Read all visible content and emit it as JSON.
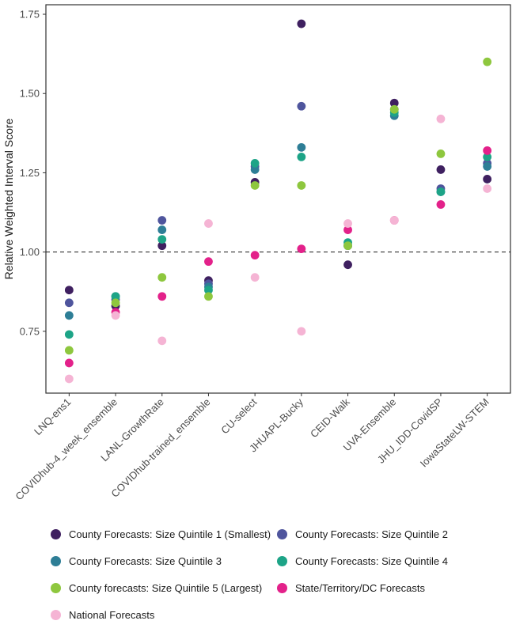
{
  "page": {
    "background": "#ffffff"
  },
  "chart_data": {
    "type": "scatter",
    "title": "",
    "xlabel": "",
    "ylabel": "Relative Weighted Interval Score",
    "ylim": [
      0.555,
      1.78
    ],
    "yticks": [
      0.75,
      1.0,
      1.25,
      1.5,
      1.75
    ],
    "ytick_labels": [
      "0.75",
      "1.00",
      "1.25",
      "1.50",
      "1.75"
    ],
    "reference_line": 1.0,
    "grid": false,
    "legend_position": "bottom",
    "categories": [
      "LNQ-ens1",
      "COVIDhub-4_week_ensemble",
      "LANL-GrowthRate",
      "COVIDhub-trained_ensemble",
      "CU-select",
      "JHUAPL-Bucky",
      "CEID-Walk",
      "UVA-Ensemble",
      "JHU_IDD-CovidSP",
      "IowaStateLW-STEM"
    ],
    "series": [
      {
        "name": "County Forecasts: Size Quintile 1 (Smallest)",
        "color": "#3f2060",
        "values": [
          0.88,
          0.83,
          1.02,
          0.91,
          1.22,
          1.72,
          0.96,
          1.47,
          1.26,
          1.23
        ]
      },
      {
        "name": "County Forecasts: Size Quintile 2",
        "color": "#4f559d",
        "values": [
          0.84,
          0.85,
          1.1,
          0.9,
          1.27,
          1.46,
          1.02,
          1.45,
          1.2,
          1.28
        ]
      },
      {
        "name": "County Forecasts: Size Quintile 3",
        "color": "#2e7e96",
        "values": [
          0.8,
          0.86,
          1.07,
          0.89,
          1.26,
          1.33,
          1.02,
          1.43,
          1.19,
          1.27
        ]
      },
      {
        "name": "County Forecasts: Size Quintile 4",
        "color": "#1da487",
        "values": [
          0.74,
          0.86,
          1.04,
          0.88,
          1.28,
          1.3,
          1.03,
          1.44,
          1.19,
          1.3
        ]
      },
      {
        "name": "County forecasts: Size Quintile 5 (Largest)",
        "color": "#8ec73e",
        "values": [
          0.69,
          0.84,
          0.92,
          0.86,
          1.21,
          1.21,
          1.02,
          1.45,
          1.31,
          1.6
        ]
      },
      {
        "name": "State/Territory/DC Forecasts",
        "color": "#e3218a",
        "values": [
          0.65,
          0.81,
          0.86,
          0.97,
          0.99,
          1.01,
          1.07,
          1.1,
          1.15,
          1.32
        ]
      },
      {
        "name": "National Forecasts",
        "color": "#f5b4d4",
        "values": [
          0.6,
          0.8,
          0.72,
          1.09,
          0.92,
          0.75,
          1.09,
          1.1,
          1.42,
          1.2
        ]
      }
    ]
  }
}
